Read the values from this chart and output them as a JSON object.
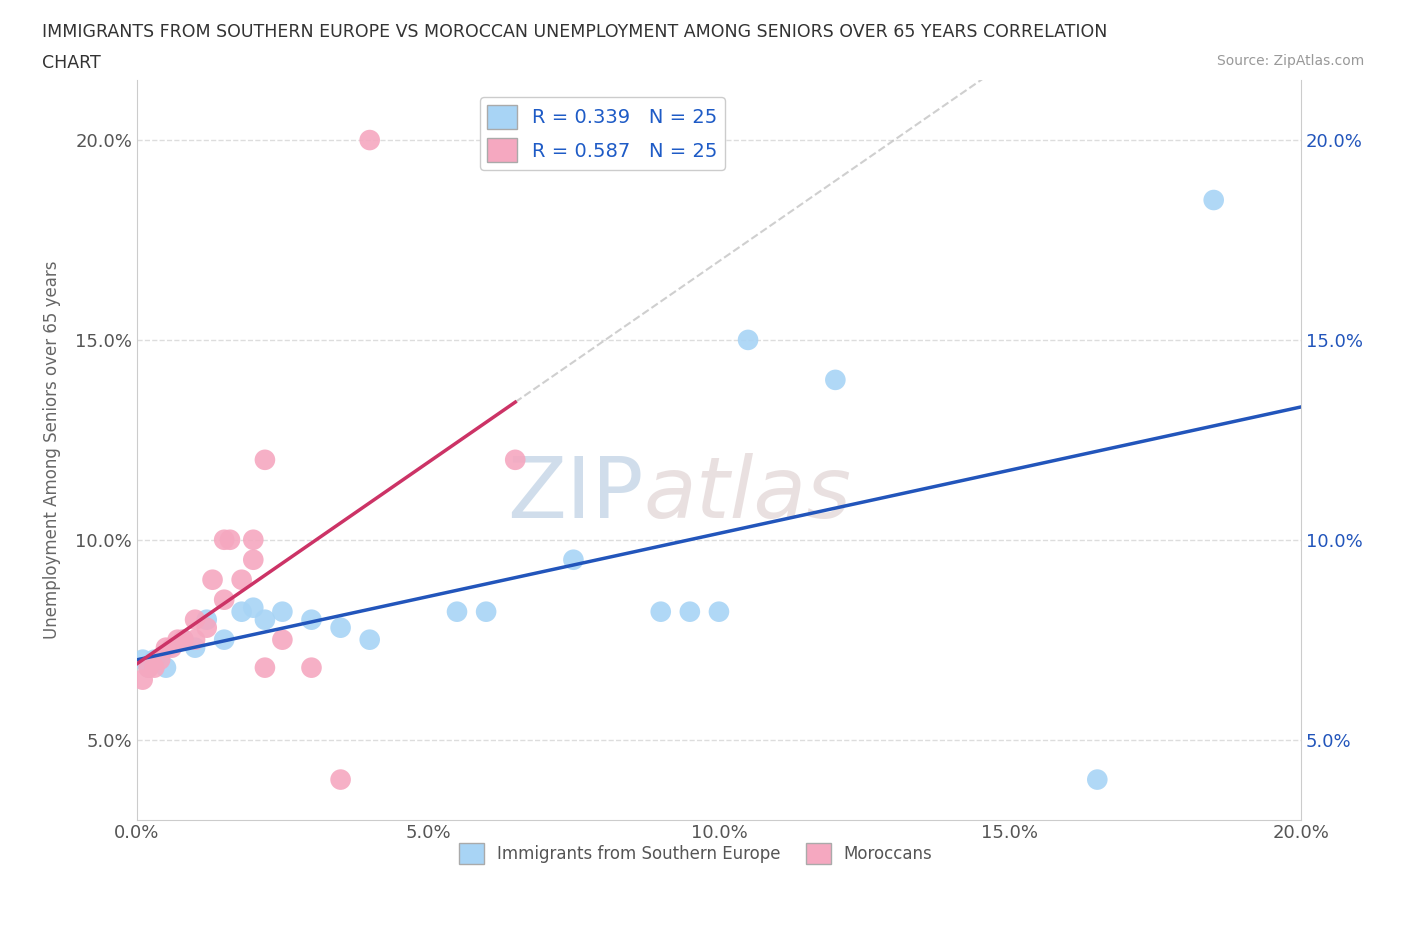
{
  "title_line1": "IMMIGRANTS FROM SOUTHERN EUROPE VS MOROCCAN UNEMPLOYMENT AMONG SENIORS OVER 65 YEARS CORRELATION",
  "title_line2": "CHART",
  "source": "Source: ZipAtlas.com",
  "ylabel": "Unemployment Among Seniors over 65 years",
  "xlim": [
    0.0,
    0.2
  ],
  "ylim": [
    0.03,
    0.215
  ],
  "yticks": [
    0.05,
    0.1,
    0.15,
    0.2
  ],
  "xticks": [
    0.0,
    0.05,
    0.1,
    0.15,
    0.2
  ],
  "xticklabels": [
    "0.0%",
    "",
    "",
    "",
    ""
  ],
  "xtick_positions": [
    0.0,
    0.05,
    0.1,
    0.15,
    0.2
  ],
  "xtick_labels_bottom": [
    "0.0%",
    "5.0%",
    "10.0%",
    "15.0%",
    "20.0%"
  ],
  "yticklabels_left": [
    "5.0%",
    "10.0%",
    "15.0%",
    "20.0%"
  ],
  "yticklabels_right": [
    "5.0%",
    "10.0%",
    "15.0%",
    "20.0%"
  ],
  "legend_labels": [
    "Immigrants from Southern Europe",
    "Moroccans"
  ],
  "blue_color": "#A8D4F5",
  "pink_color": "#F5A8C0",
  "blue_line_color": "#2255BB",
  "pink_line_color": "#CC3366",
  "gray_dash_color": "#bbbbbb",
  "R_blue": 0.339,
  "N_blue": 25,
  "R_pink": 0.587,
  "N_pink": 25,
  "blue_points": [
    [
      0.001,
      0.07
    ],
    [
      0.002,
      0.068
    ],
    [
      0.003,
      0.07
    ],
    [
      0.005,
      0.068
    ],
    [
      0.008,
      0.075
    ],
    [
      0.01,
      0.073
    ],
    [
      0.012,
      0.08
    ],
    [
      0.015,
      0.075
    ],
    [
      0.018,
      0.082
    ],
    [
      0.02,
      0.083
    ],
    [
      0.022,
      0.08
    ],
    [
      0.025,
      0.082
    ],
    [
      0.03,
      0.08
    ],
    [
      0.035,
      0.078
    ],
    [
      0.04,
      0.075
    ],
    [
      0.055,
      0.082
    ],
    [
      0.06,
      0.082
    ],
    [
      0.075,
      0.095
    ],
    [
      0.09,
      0.082
    ],
    [
      0.095,
      0.082
    ],
    [
      0.1,
      0.082
    ],
    [
      0.105,
      0.15
    ],
    [
      0.12,
      0.14
    ],
    [
      0.165,
      0.04
    ],
    [
      0.185,
      0.185
    ]
  ],
  "pink_points": [
    [
      0.001,
      0.065
    ],
    [
      0.002,
      0.068
    ],
    [
      0.003,
      0.068
    ],
    [
      0.004,
      0.07
    ],
    [
      0.005,
      0.073
    ],
    [
      0.006,
      0.073
    ],
    [
      0.007,
      0.075
    ],
    [
      0.008,
      0.075
    ],
    [
      0.01,
      0.08
    ],
    [
      0.01,
      0.075
    ],
    [
      0.012,
      0.078
    ],
    [
      0.013,
      0.09
    ],
    [
      0.015,
      0.085
    ],
    [
      0.015,
      0.1
    ],
    [
      0.016,
      0.1
    ],
    [
      0.018,
      0.09
    ],
    [
      0.02,
      0.095
    ],
    [
      0.02,
      0.1
    ],
    [
      0.022,
      0.068
    ],
    [
      0.022,
      0.12
    ],
    [
      0.025,
      0.075
    ],
    [
      0.03,
      0.068
    ],
    [
      0.035,
      0.04
    ],
    [
      0.04,
      0.2
    ],
    [
      0.065,
      0.12
    ]
  ],
  "watermark_zip": "ZIP",
  "watermark_atlas": "atlas",
  "background_color": "#ffffff",
  "grid_color": "#dddddd"
}
